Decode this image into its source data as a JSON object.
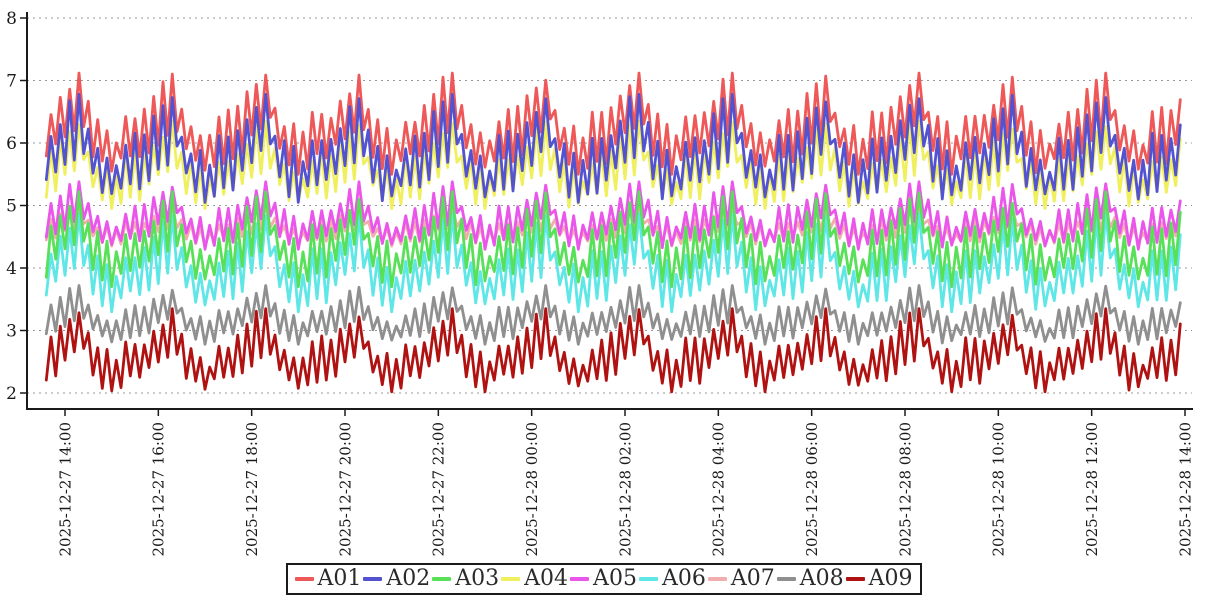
{
  "chart_data": {
    "type": "line",
    "title": "",
    "xlabel": "",
    "ylabel": "",
    "ylim": [
      2,
      8
    ],
    "yticks": [
      2,
      3,
      4,
      5,
      6,
      7,
      8
    ],
    "grid": "horizontal-dashed",
    "legend_position": "bottom-center",
    "x_tick_labels": [
      "2025-12-27 14:00",
      "2025-12-27 16:00",
      "2025-12-27 18:00",
      "2025-12-27 20:00",
      "2025-12-27 22:00",
      "2025-12-28 00:00",
      "2025-12-28 02:00",
      "2025-12-28 04:00",
      "2025-12-28 06:00",
      "2025-12-28 08:00",
      "2025-12-28 10:00",
      "2025-12-28 12:00",
      "2025-12-28 14:00"
    ],
    "x_tick_hours": [
      0,
      2,
      4,
      6,
      8,
      10,
      12,
      14,
      16,
      18,
      20,
      22,
      24
    ],
    "x_start_hour": -0.4,
    "x_interval_hours": 0.1,
    "n_points": 244,
    "pattern": [
      0.16,
      0.63,
      0.25,
      0.78,
      0.34,
      0.9,
      0.42,
      1.0,
      0.5,
      0.66,
      0.22,
      0.52,
      0.08,
      0.45,
      0.02,
      0.35,
      0.1,
      0.58,
      0.15,
      0.6
    ],
    "cycle_scale": [
      1.0,
      0.96,
      1.02,
      0.94,
      1.0,
      0.97,
      1.03
    ],
    "jitter": [
      0.02,
      -0.04,
      0.05,
      -0.02,
      0.03,
      -0.06,
      0.01,
      0.04,
      -0.03,
      0.06,
      -0.05,
      0.02,
      0.05,
      -0.02,
      0.01,
      -0.04,
      0.06,
      -0.01,
      0.03,
      -0.05,
      0.02,
      0.04,
      -0.03
    ],
    "draw_order": [
      "A01",
      "A04",
      "A02",
      "A07",
      "A05",
      "A06",
      "A03",
      "A08",
      "A09"
    ],
    "series": [
      {
        "name": "A01",
        "color": "#ef5858",
        "min": 5.5,
        "max": 7.12,
        "jitter_offset": 0
      },
      {
        "name": "A02",
        "color": "#5353d1",
        "min": 5.05,
        "max": 6.78,
        "jitter_offset": 2
      },
      {
        "name": "A03",
        "color": "#58e058",
        "min": 3.7,
        "max": 5.22,
        "jitter_offset": 5
      },
      {
        "name": "A04",
        "color": "#f0ef5d",
        "min": 4.95,
        "max": 6.35,
        "jitter_offset": 8
      },
      {
        "name": "A05",
        "color": "#ea55ea",
        "min": 4.3,
        "max": 5.38,
        "jitter_offset": 11
      },
      {
        "name": "A06",
        "color": "#5fe6e6",
        "min": 3.3,
        "max": 4.87,
        "jitter_offset": 14
      },
      {
        "name": "A07",
        "color": "#f2aeae",
        "min": 4.35,
        "max": 5.0,
        "jitter_offset": 17
      },
      {
        "name": "A08",
        "color": "#8f8f8f",
        "min": 2.78,
        "max": 3.72,
        "jitter_offset": 20
      },
      {
        "name": "A09",
        "color": "#b01212",
        "min": 2.02,
        "max": 3.35,
        "jitter_offset": 3
      }
    ]
  },
  "colors": {
    "background": "#ffffff",
    "axis": "#1a1a1a",
    "grid": "#999999",
    "tick_text": "#1a1a1a",
    "legend_border": "#1a1a1a",
    "legend_text": "#2a2a2a"
  }
}
